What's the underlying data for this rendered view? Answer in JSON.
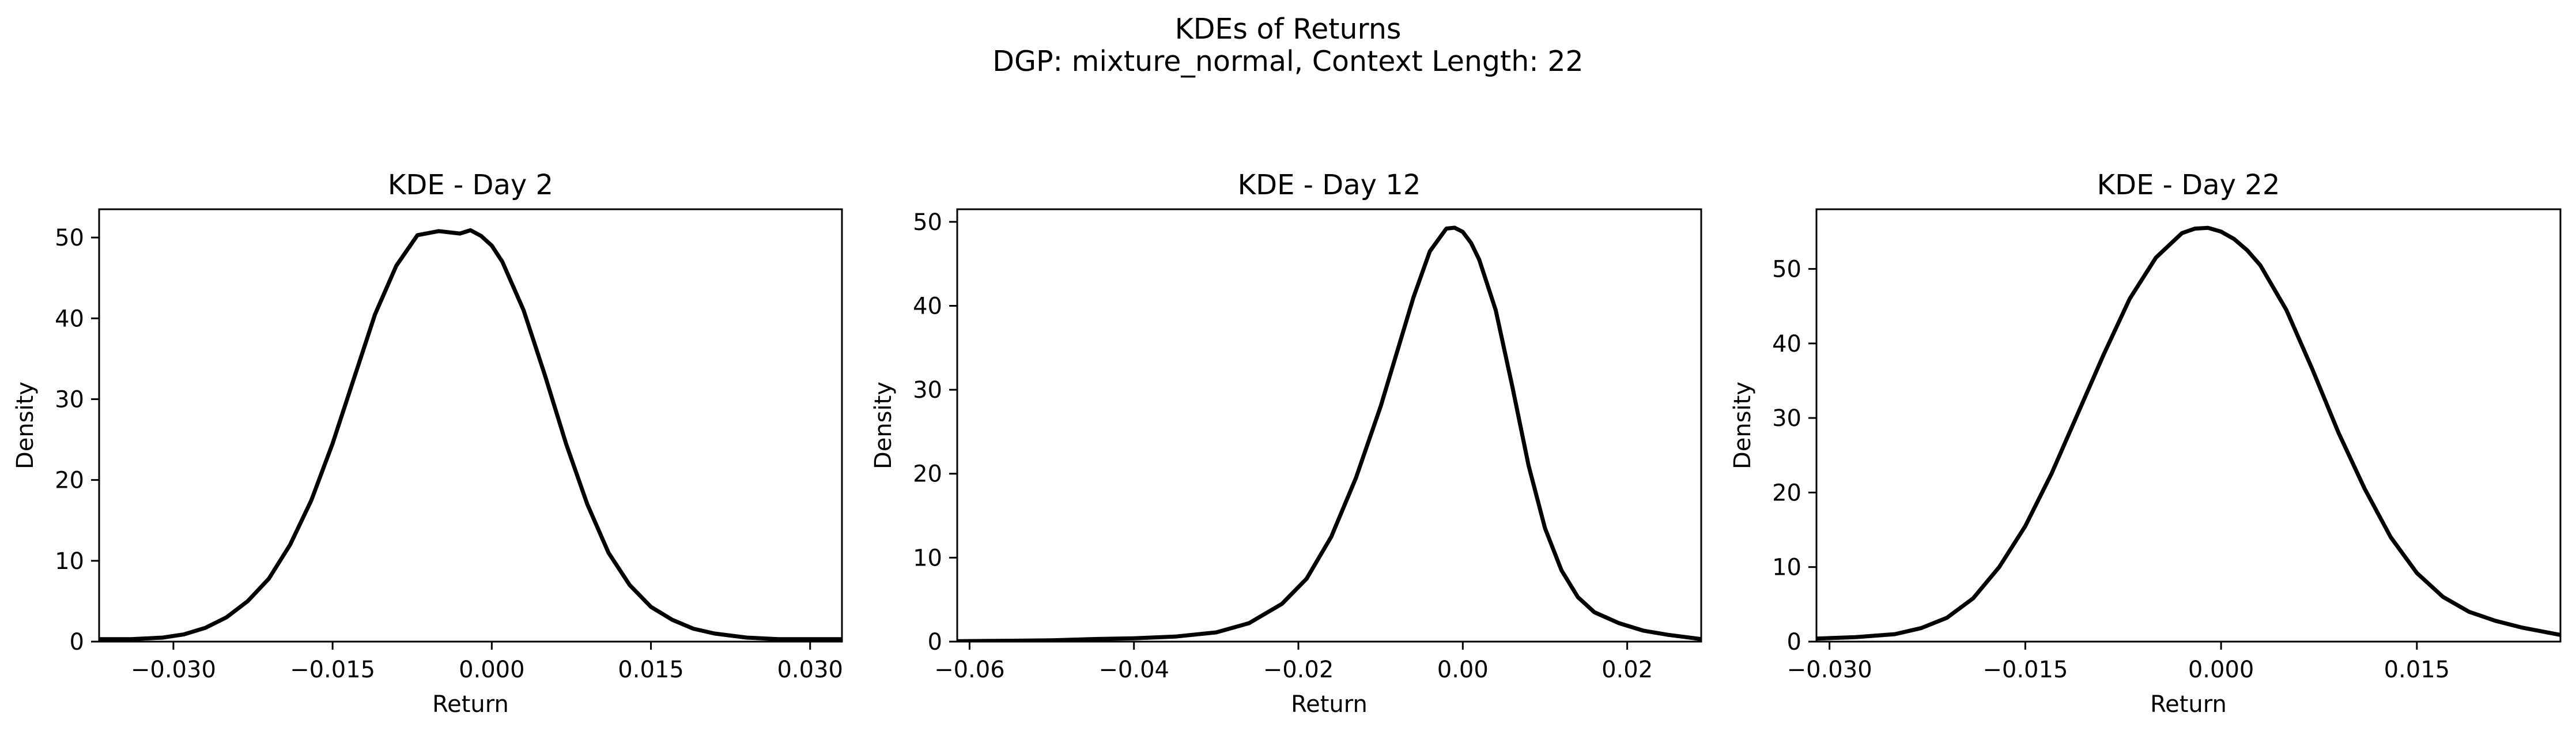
{
  "figure": {
    "title": "KDEs of Returns",
    "subtitle": "DGP: mixture_normal, Context Length: 22"
  },
  "chart_data": [
    {
      "type": "line",
      "title": "KDE - Day 2",
      "xlabel": "Return",
      "ylabel": "Density",
      "xlim": [
        -0.037,
        0.033
      ],
      "ylim": [
        0,
        53.5
      ],
      "xticks": [
        -0.03,
        -0.015,
        0.0,
        0.015,
        0.03
      ],
      "xtick_labels": [
        "−0.030",
        "−0.015",
        "0.000",
        "0.015",
        "0.030"
      ],
      "yticks": [
        0,
        10,
        20,
        30,
        40,
        50
      ],
      "ytick_labels": [
        "0",
        "10",
        "20",
        "30",
        "40",
        "50"
      ],
      "grid": false,
      "line_color": "#000000",
      "series": [
        {
          "x": [
            -0.037,
            -0.034,
            -0.031,
            -0.029,
            -0.027,
            -0.025,
            -0.023,
            -0.021,
            -0.019,
            -0.017,
            -0.015,
            -0.013,
            -0.011,
            -0.009,
            -0.007,
            -0.005,
            -0.003,
            -0.002,
            -0.001,
            0.0,
            0.001,
            0.003,
            0.005,
            0.007,
            0.009,
            0.011,
            0.013,
            0.015,
            0.017,
            0.019,
            0.021,
            0.024,
            0.027,
            0.03,
            0.033
          ],
          "y": [
            0.3,
            0.3,
            0.5,
            0.9,
            1.7,
            3.0,
            5.0,
            7.8,
            12.0,
            17.5,
            24.5,
            32.5,
            40.5,
            46.5,
            50.3,
            50.8,
            50.5,
            50.9,
            50.2,
            49.0,
            47.0,
            41.0,
            33.0,
            24.5,
            17.0,
            11.0,
            7.0,
            4.3,
            2.7,
            1.6,
            1.0,
            0.5,
            0.3,
            0.3,
            0.3
          ]
        }
      ]
    },
    {
      "type": "line",
      "title": "KDE - Day 12",
      "xlabel": "Return",
      "ylabel": "Density",
      "xlim": [
        -0.0615,
        0.029
      ],
      "ylim": [
        0,
        51.5
      ],
      "xticks": [
        -0.06,
        -0.04,
        -0.02,
        0.0,
        0.02
      ],
      "xtick_labels": [
        "−0.06",
        "−0.04",
        "−0.02",
        "0.00",
        "0.02"
      ],
      "yticks": [
        0,
        10,
        20,
        30,
        40,
        50
      ],
      "ytick_labels": [
        "0",
        "10",
        "20",
        "30",
        "40",
        "50"
      ],
      "grid": false,
      "line_color": "#000000",
      "series": [
        {
          "x": [
            -0.0615,
            -0.055,
            -0.05,
            -0.045,
            -0.04,
            -0.035,
            -0.03,
            -0.026,
            -0.022,
            -0.019,
            -0.016,
            -0.013,
            -0.01,
            -0.008,
            -0.006,
            -0.004,
            -0.002,
            -0.001,
            0.0,
            0.001,
            0.002,
            0.004,
            0.006,
            0.008,
            0.01,
            0.012,
            0.014,
            0.016,
            0.019,
            0.022,
            0.025,
            0.029
          ],
          "y": [
            0.05,
            0.1,
            0.15,
            0.3,
            0.4,
            0.6,
            1.1,
            2.2,
            4.5,
            7.5,
            12.5,
            19.5,
            28.0,
            34.5,
            41.0,
            46.5,
            49.2,
            49.3,
            48.8,
            47.5,
            45.5,
            39.5,
            30.5,
            21.0,
            13.5,
            8.5,
            5.3,
            3.5,
            2.2,
            1.3,
            0.8,
            0.3
          ]
        }
      ]
    },
    {
      "type": "line",
      "title": "KDE - Day 22",
      "xlabel": "Return",
      "ylabel": "Density",
      "xlim": [
        -0.031,
        0.026
      ],
      "ylim": [
        0,
        58
      ],
      "xticks": [
        -0.03,
        -0.015,
        0.0,
        0.015
      ],
      "xtick_labels": [
        "−0.030",
        "−0.015",
        "0.000",
        "0.015"
      ],
      "yticks": [
        0,
        10,
        20,
        30,
        40,
        50
      ],
      "ytick_labels": [
        "0",
        "10",
        "20",
        "30",
        "40",
        "50"
      ],
      "grid": false,
      "line_color": "#000000",
      "series": [
        {
          "x": [
            -0.031,
            -0.028,
            -0.025,
            -0.023,
            -0.021,
            -0.019,
            -0.017,
            -0.015,
            -0.013,
            -0.011,
            -0.009,
            -0.007,
            -0.005,
            -0.003,
            -0.002,
            -0.001,
            0.0,
            0.001,
            0.002,
            0.003,
            0.005,
            0.007,
            0.009,
            0.011,
            0.013,
            0.015,
            0.017,
            0.019,
            0.021,
            0.023,
            0.026
          ],
          "y": [
            0.4,
            0.6,
            1.0,
            1.8,
            3.2,
            5.8,
            10.0,
            15.5,
            22.5,
            30.5,
            38.5,
            46.0,
            51.5,
            54.8,
            55.4,
            55.5,
            55.0,
            54.0,
            52.5,
            50.5,
            44.5,
            36.5,
            28.0,
            20.5,
            14.0,
            9.2,
            6.0,
            4.0,
            2.8,
            1.9,
            0.9
          ]
        }
      ]
    }
  ]
}
